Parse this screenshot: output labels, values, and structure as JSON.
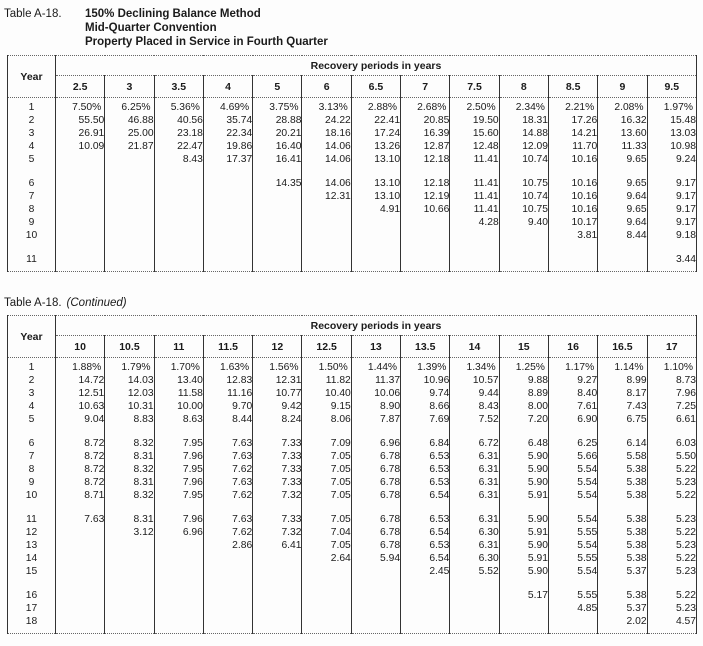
{
  "tables": [
    {
      "caption_label": "Table A-18.",
      "caption_lines": [
        "150% Declining Balance Method",
        "Mid-Quarter Convention",
        "Property Placed in Service in Fourth Quarter"
      ],
      "year_header": "Year",
      "group_header": "Recovery periods in years",
      "columns": [
        "2.5",
        "3",
        "3.5",
        "4",
        "5",
        "6",
        "6.5",
        "7",
        "7.5",
        "8",
        "8.5",
        "9",
        "9.5"
      ],
      "row_groups": [
        {
          "rows": [
            {
              "year": "1",
              "values": [
                "7.50%",
                "6.25%",
                "5.36%",
                "4.69%",
                "3.75%",
                "3.13%",
                "2.88%",
                "2.68%",
                "2.50%",
                "2.34%",
                "2.21%",
                "2.08%",
                "1.97%"
              ]
            },
            {
              "year": "2",
              "values": [
                "55.50",
                "46.88",
                "40.56",
                "35.74",
                "28.88",
                "24.22",
                "22.41",
                "20.85",
                "19.50",
                "18.31",
                "17.26",
                "16.32",
                "15.48"
              ]
            },
            {
              "year": "3",
              "values": [
                "26.91",
                "25.00",
                "23.18",
                "22.34",
                "20.21",
                "18.16",
                "17.24",
                "16.39",
                "15.60",
                "14.88",
                "14.21",
                "13.60",
                "13.03"
              ]
            },
            {
              "year": "4",
              "values": [
                "10.09",
                "21.87",
                "22.47",
                "19.86",
                "16.40",
                "14.06",
                "13.26",
                "12.87",
                "12.48",
                "12.09",
                "11.70",
                "11.33",
                "10.98"
              ]
            },
            {
              "year": "5",
              "values": [
                "",
                "",
                "8.43",
                "17.37",
                "16.41",
                "14.06",
                "13.10",
                "12.18",
                "11.41",
                "10.74",
                "10.16",
                "9.65",
                "9.24"
              ]
            }
          ]
        },
        {
          "rows": [
            {
              "year": "6",
              "values": [
                "",
                "",
                "",
                "",
                "14.35",
                "14.06",
                "13.10",
                "12.18",
                "11.41",
                "10.75",
                "10.16",
                "9.65",
                "9.17"
              ]
            },
            {
              "year": "7",
              "values": [
                "",
                "",
                "",
                "",
                "",
                "12.31",
                "13.10",
                "12.19",
                "11.41",
                "10.74",
                "10.16",
                "9.64",
                "9.17"
              ]
            },
            {
              "year": "8",
              "values": [
                "",
                "",
                "",
                "",
                "",
                "",
                "4.91",
                "10.66",
                "11.41",
                "10.75",
                "10.16",
                "9.65",
                "9.17"
              ]
            },
            {
              "year": "9",
              "values": [
                "",
                "",
                "",
                "",
                "",
                "",
                "",
                "",
                "4.28",
                "9.40",
                "10.17",
                "9.64",
                "9.17"
              ]
            },
            {
              "year": "10",
              "values": [
                "",
                "",
                "",
                "",
                "",
                "",
                "",
                "",
                "",
                "",
                "3.81",
                "8.44",
                "9.18"
              ]
            }
          ]
        },
        {
          "rows": [
            {
              "year": "11",
              "values": [
                "",
                "",
                "",
                "",
                "",
                "",
                "",
                "",
                "",
                "",
                "",
                "",
                "3.44"
              ]
            }
          ]
        }
      ]
    },
    {
      "caption_label": "Table A-18.",
      "caption_suffix": "(Continued)",
      "year_header": "Year",
      "group_header": "Recovery periods in years",
      "columns": [
        "10",
        "10.5",
        "11",
        "11.5",
        "12",
        "12.5",
        "13",
        "13.5",
        "14",
        "15",
        "16",
        "16.5",
        "17"
      ],
      "row_groups": [
        {
          "rows": [
            {
              "year": "1",
              "values": [
                "1.88%",
                "1.79%",
                "1.70%",
                "1.63%",
                "1.56%",
                "1.50%",
                "1.44%",
                "1.39%",
                "1.34%",
                "1.25%",
                "1.17%",
                "1.14%",
                "1.10%"
              ]
            },
            {
              "year": "2",
              "values": [
                "14.72",
                "14.03",
                "13.40",
                "12.83",
                "12.31",
                "11.82",
                "11.37",
                "10.96",
                "10.57",
                "9.88",
                "9.27",
                "8.99",
                "8.73"
              ]
            },
            {
              "year": "3",
              "values": [
                "12.51",
                "12.03",
                "11.58",
                "11.16",
                "10.77",
                "10.40",
                "10.06",
                "9.74",
                "9.44",
                "8.89",
                "8.40",
                "8.17",
                "7.96"
              ]
            },
            {
              "year": "4",
              "values": [
                "10.63",
                "10.31",
                "10.00",
                "9.70",
                "9.42",
                "9.15",
                "8.90",
                "8.66",
                "8.43",
                "8.00",
                "7.61",
                "7.43",
                "7.25"
              ]
            },
            {
              "year": "5",
              "values": [
                "9.04",
                "8.83",
                "8.63",
                "8.44",
                "8.24",
                "8.06",
                "7.87",
                "7.69",
                "7.52",
                "7.20",
                "6.90",
                "6.75",
                "6.61"
              ]
            }
          ]
        },
        {
          "rows": [
            {
              "year": "6",
              "values": [
                "8.72",
                "8.32",
                "7.95",
                "7.63",
                "7.33",
                "7.09",
                "6.96",
                "6.84",
                "6.72",
                "6.48",
                "6.25",
                "6.14",
                "6.03"
              ]
            },
            {
              "year": "7",
              "values": [
                "8.72",
                "8.31",
                "7.96",
                "7.63",
                "7.33",
                "7.05",
                "6.78",
                "6.53",
                "6.31",
                "5.90",
                "5.66",
                "5.58",
                "5.50"
              ]
            },
            {
              "year": "8",
              "values": [
                "8.72",
                "8.32",
                "7.95",
                "7.62",
                "7.33",
                "7.05",
                "6.78",
                "6.53",
                "6.31",
                "5.90",
                "5.54",
                "5.38",
                "5.22"
              ]
            },
            {
              "year": "9",
              "values": [
                "8.72",
                "8.31",
                "7.96",
                "7.63",
                "7.33",
                "7.05",
                "6.78",
                "6.53",
                "6.31",
                "5.90",
                "5.54",
                "5.38",
                "5.23"
              ]
            },
            {
              "year": "10",
              "values": [
                "8.71",
                "8.32",
                "7.95",
                "7.62",
                "7.32",
                "7.05",
                "6.78",
                "6.54",
                "6.31",
                "5.91",
                "5.54",
                "5.38",
                "5.22"
              ]
            }
          ]
        },
        {
          "rows": [
            {
              "year": "11",
              "values": [
                "7.63",
                "8.31",
                "7.96",
                "7.63",
                "7.33",
                "7.05",
                "6.78",
                "6.53",
                "6.31",
                "5.90",
                "5.54",
                "5.38",
                "5.23"
              ]
            },
            {
              "year": "12",
              "values": [
                "",
                "3.12",
                "6.96",
                "7.62",
                "7.32",
                "7.04",
                "6.78",
                "6.54",
                "6.30",
                "5.91",
                "5.55",
                "5.38",
                "5.22"
              ]
            },
            {
              "year": "13",
              "values": [
                "",
                "",
                "",
                "2.86",
                "6.41",
                "7.05",
                "6.78",
                "6.53",
                "6.31",
                "5.90",
                "5.54",
                "5.38",
                "5.23"
              ]
            },
            {
              "year": "14",
              "values": [
                "",
                "",
                "",
                "",
                "",
                "2.64",
                "5.94",
                "6.54",
                "6.30",
                "5.91",
                "5.55",
                "5.38",
                "5.22"
              ]
            },
            {
              "year": "15",
              "values": [
                "",
                "",
                "",
                "",
                "",
                "",
                "",
                "2.45",
                "5.52",
                "5.90",
                "5.54",
                "5.37",
                "5.23"
              ]
            }
          ]
        },
        {
          "rows": [
            {
              "year": "16",
              "values": [
                "",
                "",
                "",
                "",
                "",
                "",
                "",
                "",
                "",
                "5.17",
                "5.55",
                "5.38",
                "5.22"
              ]
            },
            {
              "year": "17",
              "values": [
                "",
                "",
                "",
                "",
                "",
                "",
                "",
                "",
                "",
                "",
                "4.85",
                "5.37",
                "5.23"
              ]
            },
            {
              "year": "18",
              "values": [
                "",
                "",
                "",
                "",
                "",
                "",
                "",
                "",
                "",
                "",
                "",
                "2.02",
                "4.57"
              ]
            }
          ]
        }
      ]
    }
  ]
}
